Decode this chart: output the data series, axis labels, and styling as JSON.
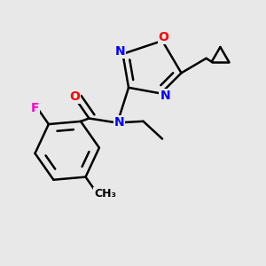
{
  "bg_color": "#e8e8e8",
  "bond_color": "#000000",
  "bond_width": 1.8,
  "colors": {
    "O": "#ff0000",
    "N": "#0000ff",
    "F": "#ff00cc",
    "C": "#000000"
  }
}
